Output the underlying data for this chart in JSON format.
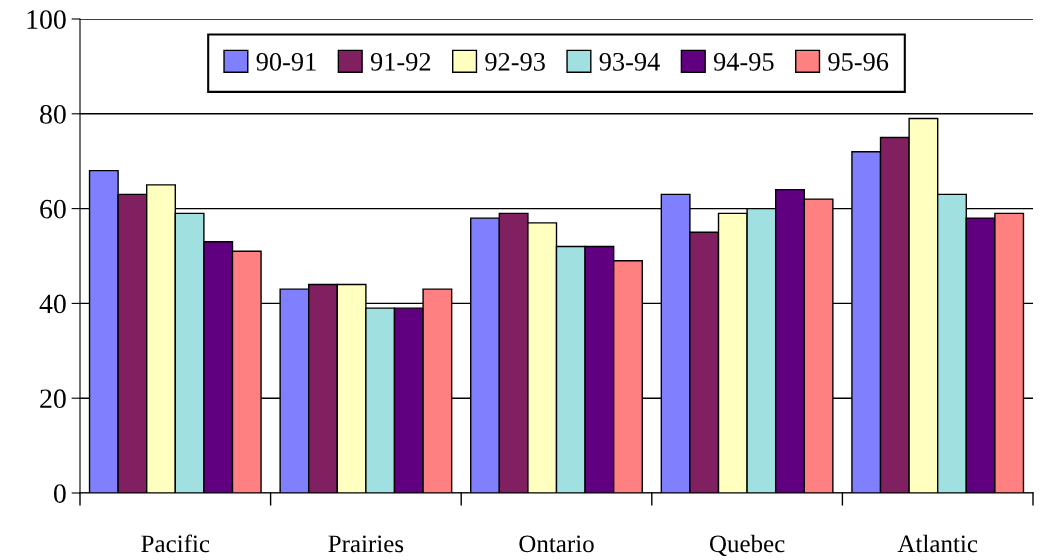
{
  "chart_data": {
    "type": "bar",
    "categories": [
      "Pacific",
      "Prairies",
      "Ontario",
      "Quebec",
      "Atlantic"
    ],
    "series": [
      {
        "name": "90-91",
        "color": "#8080ff",
        "values": [
          68,
          43,
          58,
          63,
          72
        ]
      },
      {
        "name": "91-92",
        "color": "#802060",
        "values": [
          63,
          44,
          59,
          55,
          75
        ]
      },
      {
        "name": "92-93",
        "color": "#ffffc0",
        "values": [
          65,
          44,
          57,
          59,
          79
        ]
      },
      {
        "name": "93-94",
        "color": "#a0e0e0",
        "values": [
          59,
          39,
          52,
          60,
          63
        ]
      },
      {
        "name": "94-95",
        "color": "#600080",
        "values": [
          53,
          39,
          52,
          64,
          58
        ]
      },
      {
        "name": "95-96",
        "color": "#ff8080",
        "values": [
          51,
          43,
          49,
          62,
          59
        ]
      }
    ],
    "ylim": [
      0,
      100
    ],
    "yticks": [
      0,
      20,
      40,
      60,
      80,
      100
    ],
    "grid": "y",
    "legend": "top"
  }
}
